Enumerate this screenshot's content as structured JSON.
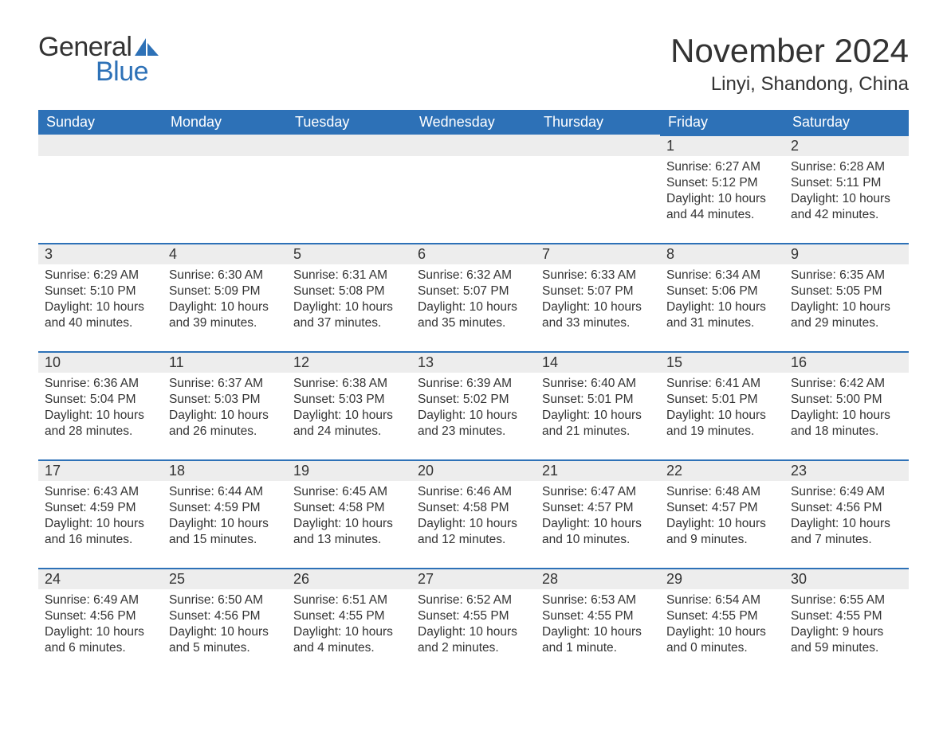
{
  "logo": {
    "general": "General",
    "blue": "Blue",
    "sail_color": "#2d71b7"
  },
  "header": {
    "month_title": "November 2024",
    "location": "Linyi, Shandong, China"
  },
  "colors": {
    "header_bg": "#2d71b7",
    "header_text": "#ffffff",
    "daynum_bg": "#ededed",
    "daynum_border": "#2d71b7",
    "body_text": "#333333",
    "page_bg": "#ffffff"
  },
  "typography": {
    "month_title_fontsize": 42,
    "location_fontsize": 24,
    "dayheader_fontsize": 18,
    "daynum_fontsize": 18,
    "body_fontsize": 15.5
  },
  "calendar": {
    "type": "table",
    "day_names": [
      "Sunday",
      "Monday",
      "Tuesday",
      "Wednesday",
      "Thursday",
      "Friday",
      "Saturday"
    ],
    "weeks": [
      [
        null,
        null,
        null,
        null,
        null,
        {
          "day": "1",
          "sunrise": "Sunrise: 6:27 AM",
          "sunset": "Sunset: 5:12 PM",
          "daylight": "Daylight: 10 hours and 44 minutes."
        },
        {
          "day": "2",
          "sunrise": "Sunrise: 6:28 AM",
          "sunset": "Sunset: 5:11 PM",
          "daylight": "Daylight: 10 hours and 42 minutes."
        }
      ],
      [
        {
          "day": "3",
          "sunrise": "Sunrise: 6:29 AM",
          "sunset": "Sunset: 5:10 PM",
          "daylight": "Daylight: 10 hours and 40 minutes."
        },
        {
          "day": "4",
          "sunrise": "Sunrise: 6:30 AM",
          "sunset": "Sunset: 5:09 PM",
          "daylight": "Daylight: 10 hours and 39 minutes."
        },
        {
          "day": "5",
          "sunrise": "Sunrise: 6:31 AM",
          "sunset": "Sunset: 5:08 PM",
          "daylight": "Daylight: 10 hours and 37 minutes."
        },
        {
          "day": "6",
          "sunrise": "Sunrise: 6:32 AM",
          "sunset": "Sunset: 5:07 PM",
          "daylight": "Daylight: 10 hours and 35 minutes."
        },
        {
          "day": "7",
          "sunrise": "Sunrise: 6:33 AM",
          "sunset": "Sunset: 5:07 PM",
          "daylight": "Daylight: 10 hours and 33 minutes."
        },
        {
          "day": "8",
          "sunrise": "Sunrise: 6:34 AM",
          "sunset": "Sunset: 5:06 PM",
          "daylight": "Daylight: 10 hours and 31 minutes."
        },
        {
          "day": "9",
          "sunrise": "Sunrise: 6:35 AM",
          "sunset": "Sunset: 5:05 PM",
          "daylight": "Daylight: 10 hours and 29 minutes."
        }
      ],
      [
        {
          "day": "10",
          "sunrise": "Sunrise: 6:36 AM",
          "sunset": "Sunset: 5:04 PM",
          "daylight": "Daylight: 10 hours and 28 minutes."
        },
        {
          "day": "11",
          "sunrise": "Sunrise: 6:37 AM",
          "sunset": "Sunset: 5:03 PM",
          "daylight": "Daylight: 10 hours and 26 minutes."
        },
        {
          "day": "12",
          "sunrise": "Sunrise: 6:38 AM",
          "sunset": "Sunset: 5:03 PM",
          "daylight": "Daylight: 10 hours and 24 minutes."
        },
        {
          "day": "13",
          "sunrise": "Sunrise: 6:39 AM",
          "sunset": "Sunset: 5:02 PM",
          "daylight": "Daylight: 10 hours and 23 minutes."
        },
        {
          "day": "14",
          "sunrise": "Sunrise: 6:40 AM",
          "sunset": "Sunset: 5:01 PM",
          "daylight": "Daylight: 10 hours and 21 minutes."
        },
        {
          "day": "15",
          "sunrise": "Sunrise: 6:41 AM",
          "sunset": "Sunset: 5:01 PM",
          "daylight": "Daylight: 10 hours and 19 minutes."
        },
        {
          "day": "16",
          "sunrise": "Sunrise: 6:42 AM",
          "sunset": "Sunset: 5:00 PM",
          "daylight": "Daylight: 10 hours and 18 minutes."
        }
      ],
      [
        {
          "day": "17",
          "sunrise": "Sunrise: 6:43 AM",
          "sunset": "Sunset: 4:59 PM",
          "daylight": "Daylight: 10 hours and 16 minutes."
        },
        {
          "day": "18",
          "sunrise": "Sunrise: 6:44 AM",
          "sunset": "Sunset: 4:59 PM",
          "daylight": "Daylight: 10 hours and 15 minutes."
        },
        {
          "day": "19",
          "sunrise": "Sunrise: 6:45 AM",
          "sunset": "Sunset: 4:58 PM",
          "daylight": "Daylight: 10 hours and 13 minutes."
        },
        {
          "day": "20",
          "sunrise": "Sunrise: 6:46 AM",
          "sunset": "Sunset: 4:58 PM",
          "daylight": "Daylight: 10 hours and 12 minutes."
        },
        {
          "day": "21",
          "sunrise": "Sunrise: 6:47 AM",
          "sunset": "Sunset: 4:57 PM",
          "daylight": "Daylight: 10 hours and 10 minutes."
        },
        {
          "day": "22",
          "sunrise": "Sunrise: 6:48 AM",
          "sunset": "Sunset: 4:57 PM",
          "daylight": "Daylight: 10 hours and 9 minutes."
        },
        {
          "day": "23",
          "sunrise": "Sunrise: 6:49 AM",
          "sunset": "Sunset: 4:56 PM",
          "daylight": "Daylight: 10 hours and 7 minutes."
        }
      ],
      [
        {
          "day": "24",
          "sunrise": "Sunrise: 6:49 AM",
          "sunset": "Sunset: 4:56 PM",
          "daylight": "Daylight: 10 hours and 6 minutes."
        },
        {
          "day": "25",
          "sunrise": "Sunrise: 6:50 AM",
          "sunset": "Sunset: 4:56 PM",
          "daylight": "Daylight: 10 hours and 5 minutes."
        },
        {
          "day": "26",
          "sunrise": "Sunrise: 6:51 AM",
          "sunset": "Sunset: 4:55 PM",
          "daylight": "Daylight: 10 hours and 4 minutes."
        },
        {
          "day": "27",
          "sunrise": "Sunrise: 6:52 AM",
          "sunset": "Sunset: 4:55 PM",
          "daylight": "Daylight: 10 hours and 2 minutes."
        },
        {
          "day": "28",
          "sunrise": "Sunrise: 6:53 AM",
          "sunset": "Sunset: 4:55 PM",
          "daylight": "Daylight: 10 hours and 1 minute."
        },
        {
          "day": "29",
          "sunrise": "Sunrise: 6:54 AM",
          "sunset": "Sunset: 4:55 PM",
          "daylight": "Daylight: 10 hours and 0 minutes."
        },
        {
          "day": "30",
          "sunrise": "Sunrise: 6:55 AM",
          "sunset": "Sunset: 4:55 PM",
          "daylight": "Daylight: 9 hours and 59 minutes."
        }
      ]
    ]
  }
}
